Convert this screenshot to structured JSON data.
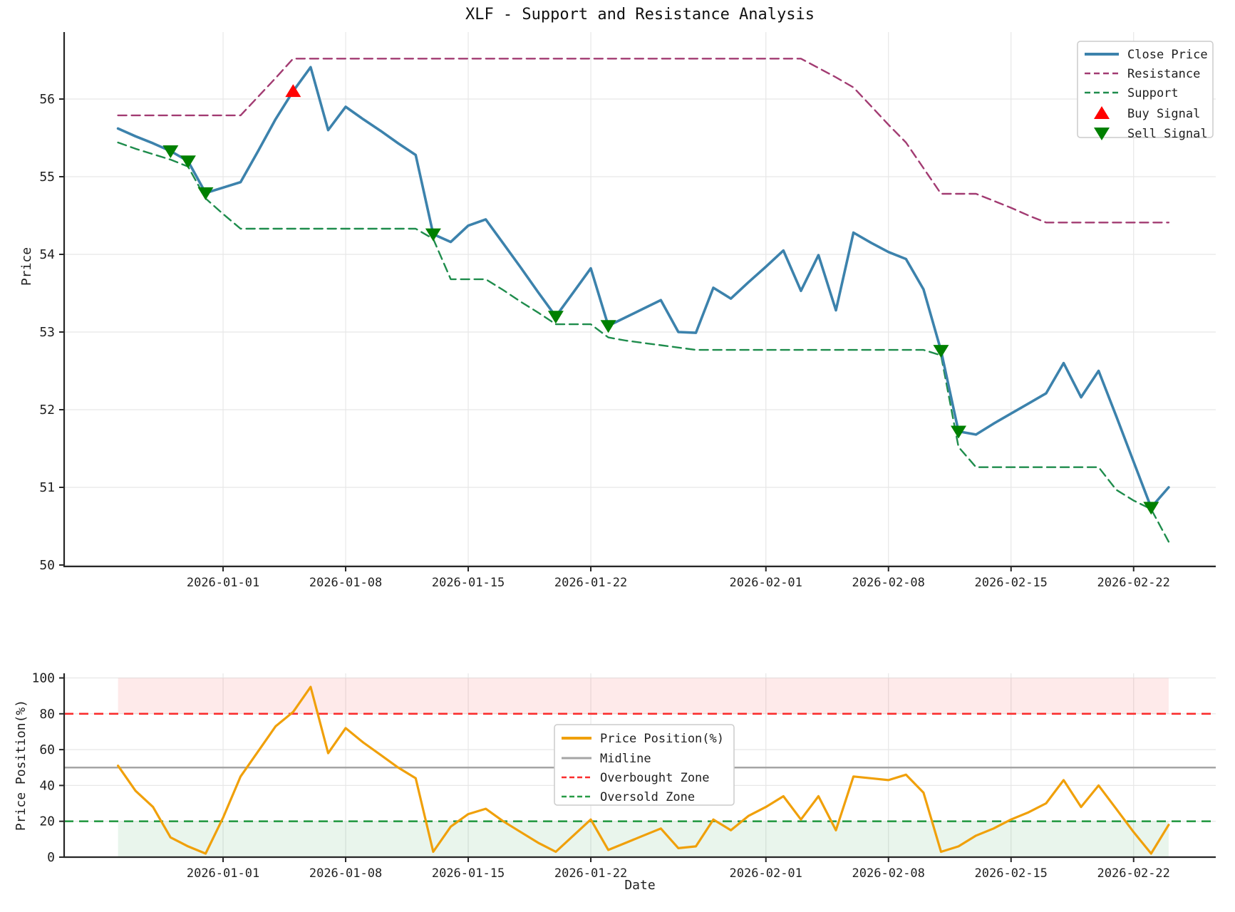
{
  "title": "XLF - Support and Resistance Analysis",
  "colors": {
    "close_price": "#3c82ac",
    "resistance": "#a23b72",
    "support": "#1e8c4c",
    "buy_signal": "#ff0000",
    "sell_signal": "#008000",
    "price_position": "#f0a00a",
    "midline": "#a5a5a5",
    "overbought": "#fa2d2d",
    "oversold": "#289b46",
    "overbought_fill": "rgba(250,45,45,0.10)",
    "oversold_fill": "rgba(40,155,70,0.10)",
    "grid": "#e7e7e7",
    "spine": "#262626"
  },
  "chart_data": [
    {
      "type": "line",
      "title": "XLF - Support and Resistance Analysis",
      "ylabel": "Price",
      "ylim": [
        49.98,
        56.86
      ],
      "yticks": [
        50,
        51,
        52,
        53,
        54,
        55,
        56
      ],
      "grid": true,
      "legend_position": "upper right",
      "x_ticks": [
        "2026-01-01",
        "2026-01-08",
        "2026-01-15",
        "2026-01-22",
        "2026-02-01",
        "2026-02-08",
        "2026-02-15",
        "2026-02-22"
      ],
      "dates": [
        "2025-12-26",
        "2025-12-27",
        "2025-12-28",
        "2025-12-29",
        "2025-12-30",
        "2025-12-31",
        "2026-01-01",
        "2026-01-02",
        "2026-01-03",
        "2026-01-04",
        "2026-01-05",
        "2026-01-06",
        "2026-01-07",
        "2026-01-08",
        "2026-01-09",
        "2026-01-10",
        "2026-01-11",
        "2026-01-12",
        "2026-01-13",
        "2026-01-14",
        "2026-01-15",
        "2026-01-16",
        "2026-01-17",
        "2026-01-18",
        "2026-01-19",
        "2026-01-20",
        "2026-01-21",
        "2026-01-22",
        "2026-01-23",
        "2026-01-24",
        "2026-01-25",
        "2026-01-26",
        "2026-01-27",
        "2026-01-28",
        "2026-01-29",
        "2026-01-30",
        "2026-01-31",
        "2026-02-01",
        "2026-02-02",
        "2026-02-03",
        "2026-02-04",
        "2026-02-05",
        "2026-02-06",
        "2026-02-07",
        "2026-02-08",
        "2026-02-09",
        "2026-02-10",
        "2026-02-11",
        "2026-02-12",
        "2026-02-13",
        "2026-02-14",
        "2026-02-15",
        "2026-02-16",
        "2026-02-17",
        "2026-02-18",
        "2026-02-19",
        "2026-02-20",
        "2026-02-21",
        "2026-02-22",
        "2026-02-23",
        "2026-02-24"
      ],
      "series": [
        {
          "name": "Close Price",
          "style": "solid",
          "color_key": "close_price",
          "values": [
            55.62,
            55.52,
            55.43,
            55.33,
            55.2,
            54.79,
            54.86,
            54.93,
            55.33,
            55.74,
            56.1,
            56.41,
            55.6,
            55.9,
            55.74,
            55.59,
            55.43,
            55.28,
            54.26,
            54.16,
            54.37,
            54.45,
            54.14,
            53.83,
            53.51,
            53.2,
            53.51,
            53.82,
            53.08,
            53.19,
            53.3,
            53.41,
            53.0,
            52.99,
            53.57,
            53.43,
            53.64,
            53.84,
            54.05,
            53.53,
            53.99,
            53.28,
            54.28,
            54.15,
            54.03,
            53.94,
            53.55,
            52.76,
            51.72,
            51.68,
            51.82,
            51.95,
            52.08,
            52.21,
            52.6,
            52.16,
            52.5,
            51.92,
            51.33,
            50.74,
            51.0
          ]
        },
        {
          "name": "Resistance",
          "style": "dashed",
          "color_key": "resistance",
          "values": [
            55.79,
            55.79,
            55.79,
            55.79,
            55.79,
            55.79,
            55.79,
            55.79,
            56.03,
            56.27,
            56.52,
            56.52,
            56.52,
            56.52,
            56.52,
            56.52,
            56.52,
            56.52,
            56.52,
            56.52,
            56.52,
            56.52,
            56.52,
            56.52,
            56.52,
            56.52,
            56.52,
            56.52,
            56.52,
            56.52,
            56.52,
            56.52,
            56.52,
            56.52,
            56.52,
            56.52,
            56.52,
            56.52,
            56.52,
            56.52,
            56.4,
            56.28,
            56.15,
            55.91,
            55.67,
            55.44,
            55.11,
            54.78,
            54.78,
            54.78,
            54.69,
            54.6,
            54.5,
            54.41,
            54.41,
            54.41,
            54.41,
            54.41,
            54.41,
            54.41,
            54.41
          ]
        },
        {
          "name": "Support",
          "style": "dashed",
          "color_key": "support",
          "values": [
            55.44,
            55.36,
            55.29,
            55.22,
            55.13,
            54.72,
            54.52,
            54.33,
            54.33,
            54.33,
            54.33,
            54.33,
            54.33,
            54.33,
            54.33,
            54.33,
            54.33,
            54.33,
            54.2,
            53.68,
            53.68,
            53.68,
            53.54,
            53.39,
            53.25,
            53.1,
            53.1,
            53.1,
            52.93,
            52.89,
            52.86,
            52.83,
            52.8,
            52.77,
            52.77,
            52.77,
            52.77,
            52.77,
            52.77,
            52.77,
            52.77,
            52.77,
            52.77,
            52.77,
            52.77,
            52.77,
            52.77,
            52.7,
            51.52,
            51.26,
            51.26,
            51.26,
            51.26,
            51.26,
            51.26,
            51.26,
            51.26,
            50.97,
            50.83,
            50.72,
            50.3
          ]
        }
      ],
      "signals": {
        "buy": {
          "label": "Buy Signal",
          "marker": "triangle-up",
          "points": [
            {
              "date": "2026-01-05",
              "price": 56.1
            }
          ]
        },
        "sell": {
          "label": "Sell Signal",
          "marker": "triangle-down",
          "points": [
            {
              "date": "2025-12-29",
              "price": 55.33
            },
            {
              "date": "2025-12-30",
              "price": 55.2
            },
            {
              "date": "2025-12-31",
              "price": 54.79
            },
            {
              "date": "2026-01-13",
              "price": 54.26
            },
            {
              "date": "2026-01-20",
              "price": 53.2
            },
            {
              "date": "2026-01-23",
              "price": 53.08
            },
            {
              "date": "2026-02-11",
              "price": 52.76
            },
            {
              "date": "2026-02-12",
              "price": 51.72
            },
            {
              "date": "2026-02-23",
              "price": 50.74
            }
          ]
        }
      }
    },
    {
      "type": "line",
      "ylabel": "Price Position(%)",
      "xlabel": "Date",
      "ylim": [
        0,
        102.6
      ],
      "yticks": [
        0,
        20,
        40,
        60,
        80,
        100
      ],
      "grid": true,
      "legend_position": "center",
      "x_ticks": [
        "2026-01-01",
        "2026-01-08",
        "2026-01-15",
        "2026-01-22",
        "2026-02-01",
        "2026-02-08",
        "2026-02-15",
        "2026-02-22"
      ],
      "series": [
        {
          "name": "Price Position(%)",
          "style": "solid",
          "color_key": "price_position",
          "values": [
            51,
            37,
            28,
            11,
            6,
            2,
            22,
            45,
            59,
            73,
            81,
            95,
            58,
            72,
            64,
            57,
            50,
            44,
            3,
            17,
            24,
            27,
            20,
            14,
            8,
            3,
            12,
            21,
            4,
            8,
            12,
            16,
            5,
            6,
            21,
            15,
            23,
            28,
            34,
            21,
            34,
            15,
            45,
            44,
            43,
            46,
            36,
            3,
            6,
            12,
            16,
            21,
            25,
            30,
            43,
            28,
            40,
            27,
            14,
            2,
            18
          ]
        }
      ],
      "reference_lines": [
        {
          "name": "Midline",
          "value": 50,
          "style": "solid",
          "color_key": "midline"
        },
        {
          "name": "Overbought Zone",
          "value": 80,
          "style": "dashed",
          "color_key": "overbought"
        },
        {
          "name": "Oversold Zone",
          "value": 20,
          "style": "dashed",
          "color_key": "oversold"
        }
      ],
      "zones": [
        {
          "name": "overbought-zone",
          "from": 80,
          "to": 100,
          "fill_key": "overbought_fill"
        },
        {
          "name": "oversold-zone",
          "from": 0,
          "to": 20,
          "fill_key": "oversold_fill"
        }
      ]
    }
  ]
}
